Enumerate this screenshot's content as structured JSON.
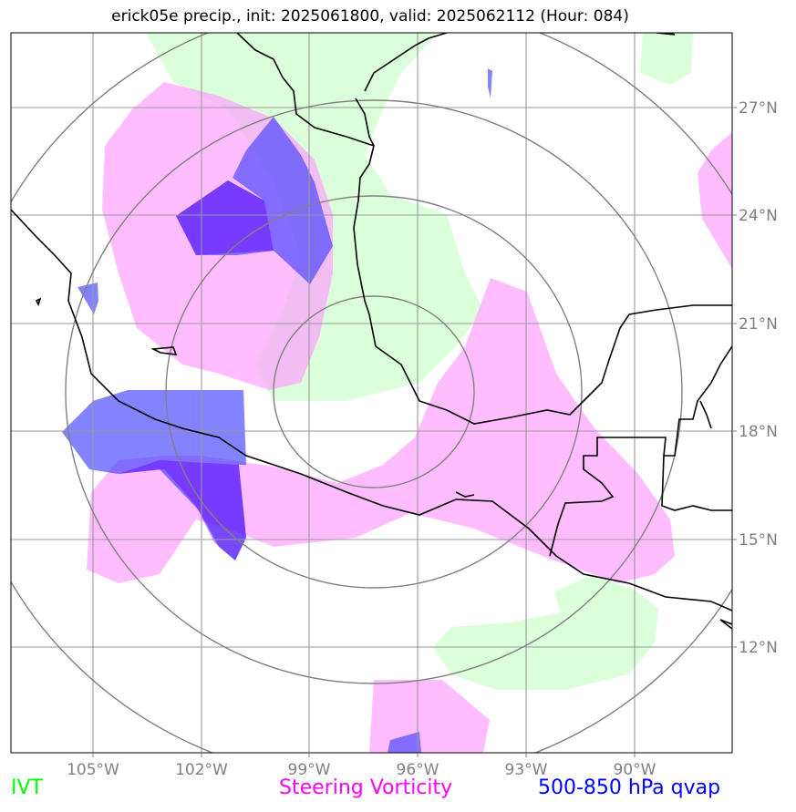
{
  "title": "erick05e precip., init: 2025061800, valid: 2025062112 (Hour: 084)",
  "lat_labels": [
    "27°N",
    "24°N",
    "21°N",
    "18°N",
    "15°N",
    "12°N"
  ],
  "lon_labels": [
    "105°W",
    "102°W",
    "99°W",
    "96°W",
    "93°W",
    "90°W"
  ],
  "legend": {
    "ivt": "IVT",
    "steering_vorticity": "Steering Vorticity",
    "qvap": "500-850 hPa qvap"
  },
  "colors": {
    "ivt": "#00ff00",
    "steering_vorticity": "#ff00ff",
    "qvap": "#0000ff",
    "grid": "#808080",
    "coast": "#000000"
  },
  "map_extent": {
    "lon_min": -107.25,
    "lon_max": -87.25,
    "lat_min": 9.25,
    "lat_max": 29.25
  },
  "range_rings_center": {
    "lon": -96.0,
    "lat": 19.0
  }
}
